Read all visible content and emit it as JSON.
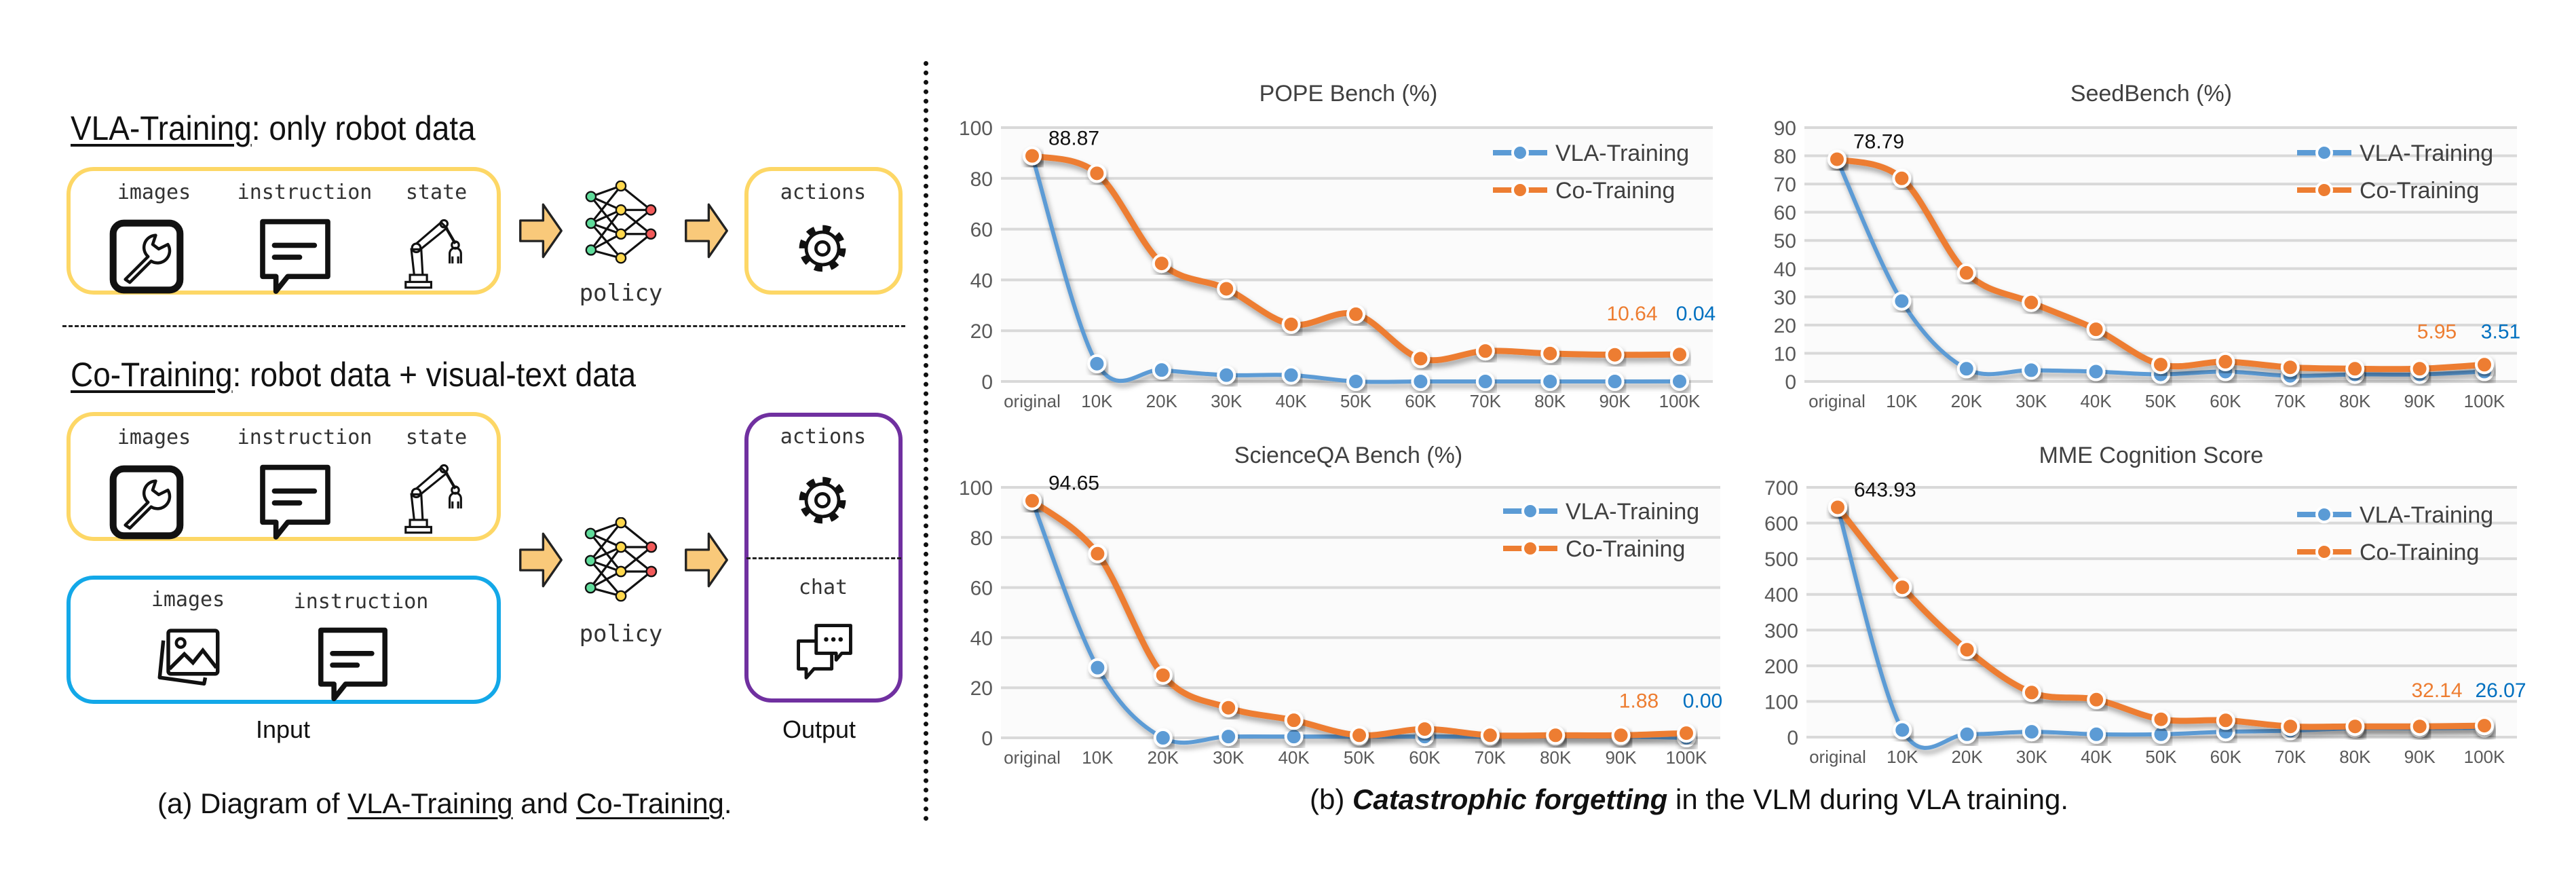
{
  "diagram": {
    "vla_section": {
      "title_underlined": "VLA-Training",
      "title_rest": ": only robot data"
    },
    "co_section": {
      "title_underlined": "Co-Training",
      "title_rest": ": robot data + visual-text data"
    },
    "input_labels": {
      "images": "images",
      "instruction": "instruction",
      "state": "state"
    },
    "policy_label": "policy",
    "output_labels": {
      "actions": "actions",
      "chat": "chat"
    },
    "group_labels": {
      "input": "Input",
      "output": "Output"
    },
    "colors": {
      "robot_box": "#fdd766",
      "visual_text_box": "#13a8e8",
      "output_box": "#7030a0",
      "arrow": "#f9c97a"
    },
    "icons": [
      "wrench-image-icon",
      "speech-bubble-icon",
      "robot-arm-icon",
      "neural-network-icon",
      "gear-icon",
      "picture-icon",
      "chat-bubbles-icon",
      "arrow-right-icon"
    ],
    "caption": {
      "prefix": "(a) Diagram of ",
      "term1": "VLA-Training",
      "middle": " and ",
      "term2": "Co-Training",
      "suffix": "."
    }
  },
  "charts_caption": {
    "prefix": "(b) ",
    "emphasis": "Catastrophic forgetting",
    "suffix": " in the VLM during VLA training."
  },
  "chart_data": [
    {
      "type": "line",
      "title": "POPE Bench (%)",
      "categories": [
        "original",
        "10K",
        "20K",
        "30K",
        "40K",
        "50K",
        "60K",
        "70K",
        "80K",
        "90K",
        "100K"
      ],
      "ylim": [
        0,
        100
      ],
      "yticks": [
        0,
        20,
        40,
        60,
        80,
        100
      ],
      "grid": true,
      "legend": "top-right",
      "series": [
        {
          "name": "VLA-Training",
          "color": "#5b9bd5",
          "values": [
            88.87,
            7,
            4.5,
            2.5,
            2.5,
            0,
            0,
            0,
            0,
            0,
            0.04
          ]
        },
        {
          "name": "Co-Training",
          "color": "#ed7d31",
          "values": [
            88.87,
            82,
            46.5,
            36.5,
            22.5,
            26.5,
            9,
            12,
            11,
            10.5,
            10.64
          ]
        }
      ],
      "annotations": {
        "start": "88.87",
        "co_end": "10.64",
        "vla_end": "0.04"
      }
    },
    {
      "type": "line",
      "title": "SeedBench (%)",
      "categories": [
        "original",
        "10K",
        "20K",
        "30K",
        "40K",
        "50K",
        "60K",
        "70K",
        "80K",
        "90K",
        "100K"
      ],
      "ylim": [
        0,
        90
      ],
      "yticks": [
        0,
        10,
        20,
        30,
        40,
        50,
        60,
        70,
        80,
        90
      ],
      "grid": true,
      "legend": "top-right",
      "series": [
        {
          "name": "VLA-Training",
          "color": "#5b9bd5",
          "values": [
            78.79,
            28.5,
            4.5,
            4,
            3.5,
            2.5,
            3.5,
            2,
            2.5,
            2.5,
            3.51
          ]
        },
        {
          "name": "Co-Training",
          "color": "#ed7d31",
          "values": [
            78.79,
            72,
            38.5,
            28,
            18.5,
            6,
            7,
            5,
            4.5,
            4.5,
            5.95
          ]
        }
      ],
      "annotations": {
        "start": "78.79",
        "co_end": "5.95",
        "vla_end": "3.51"
      }
    },
    {
      "type": "line",
      "title": "ScienceQA Bench (%)",
      "categories": [
        "original",
        "10K",
        "20K",
        "30K",
        "40K",
        "50K",
        "60K",
        "70K",
        "80K",
        "90K",
        "100K"
      ],
      "ylim": [
        0,
        100
      ],
      "yticks": [
        0,
        20,
        40,
        60,
        80,
        100
      ],
      "grid": true,
      "legend": "top-right",
      "series": [
        {
          "name": "VLA-Training",
          "color": "#5b9bd5",
          "values": [
            94.65,
            28,
            0,
            0.5,
            0.5,
            0.5,
            0.5,
            0.5,
            0.5,
            0.5,
            0.0
          ]
        },
        {
          "name": "Co-Training",
          "color": "#ed7d31",
          "values": [
            94.65,
            73.5,
            25,
            12,
            7,
            1,
            3.5,
            1,
            1,
            1,
            1.88
          ]
        }
      ],
      "annotations": {
        "start": "94.65",
        "co_end": "1.88",
        "vla_end": "0.00"
      }
    },
    {
      "type": "line",
      "title": "MME Cognition Score",
      "categories": [
        "original",
        "10K",
        "20K",
        "30K",
        "40K",
        "50K",
        "60K",
        "70K",
        "80K",
        "90K",
        "100K"
      ],
      "ylim": [
        0,
        700
      ],
      "yticks": [
        0,
        100,
        200,
        300,
        400,
        500,
        600,
        700
      ],
      "grid": true,
      "legend": "top-right",
      "series": [
        {
          "name": "VLA-Training",
          "color": "#5b9bd5",
          "values": [
            643.93,
            20,
            8,
            15,
            8,
            8,
            15,
            18,
            25,
            25,
            26.07
          ]
        },
        {
          "name": "Co-Training",
          "color": "#ed7d31",
          "values": [
            643.93,
            420,
            245,
            125,
            105,
            50,
            47,
            30,
            30,
            30,
            32.14
          ]
        }
      ],
      "annotations": {
        "start": "643.93",
        "co_end": "32.14",
        "vla_end": "26.07"
      }
    }
  ]
}
